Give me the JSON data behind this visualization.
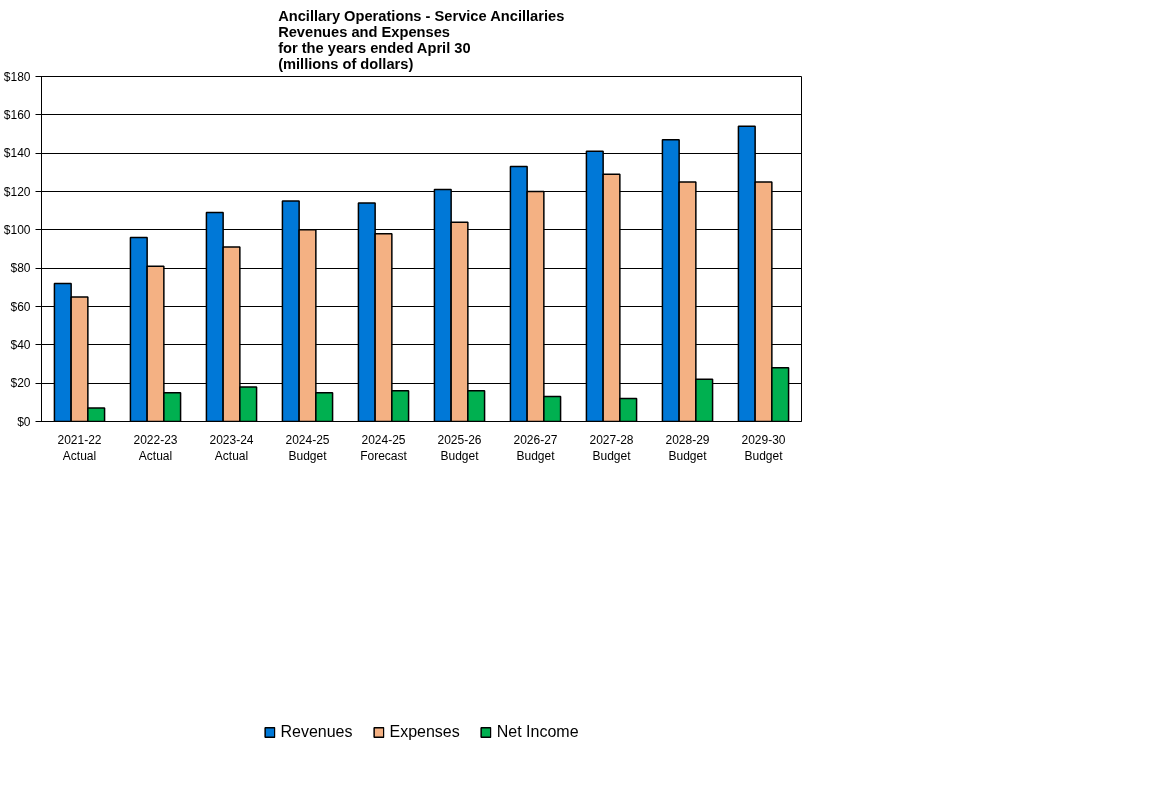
{
  "chart_data": {
    "type": "bar",
    "title": "Ancillary Operations - Service Ancillaries\nRevenues and Expenses\nfor the years ended April 30\n(millions of dollars)",
    "categories": [
      "2021-22\nActual",
      "2022-23\nActual",
      "2023-24\nActual",
      "2024-25\nBudget",
      "2024-25\nForecast",
      "2025-26\nBudget",
      "2026-27\nBudget",
      "2027-28\nBudget",
      "2028-29\nBudget",
      "2029-30\nBudget"
    ],
    "series": [
      {
        "name": "Revenues",
        "color": "#0078d7",
        "values": [
          72,
          96,
          109,
          115,
          114,
          121,
          133,
          141,
          147,
          154
        ]
      },
      {
        "name": "Expenses",
        "color": "#f4b183",
        "values": [
          65,
          81,
          91,
          100,
          98,
          104,
          120,
          129,
          125,
          125
        ]
      },
      {
        "name": "Net Income",
        "color": "#00b050",
        "values": [
          7,
          15,
          18,
          15,
          16,
          16,
          13,
          12,
          22,
          28
        ]
      }
    ],
    "ylim": [
      0,
      180
    ],
    "yticks": [
      {
        "value": 0,
        "label": "$0"
      },
      {
        "value": 20,
        "label": "$20"
      },
      {
        "value": 40,
        "label": "$40"
      },
      {
        "value": 60,
        "label": "$60"
      },
      {
        "value": 80,
        "label": "$80"
      },
      {
        "value": 100,
        "label": "$100"
      },
      {
        "value": 120,
        "label": "$120"
      },
      {
        "value": 140,
        "label": "$140"
      },
      {
        "value": 160,
        "label": "$160"
      },
      {
        "value": 180,
        "label": "$180"
      }
    ],
    "grid": "y",
    "legend": "bottom"
  }
}
